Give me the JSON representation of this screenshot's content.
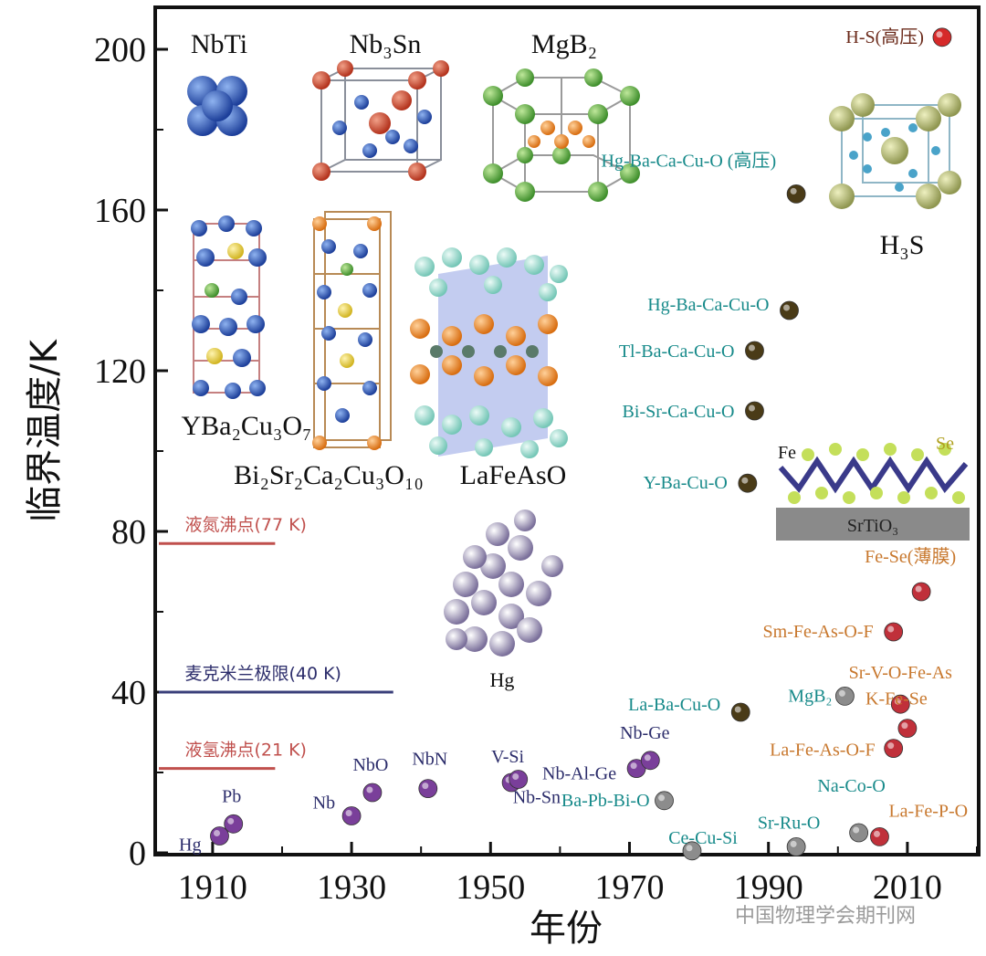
{
  "chart_data": {
    "type": "scatter",
    "xlabel": "年份",
    "ylabel": "临界温度/K",
    "xlim": [
      1902,
      2020
    ],
    "ylim": [
      0,
      210
    ],
    "x_ticks": [
      "1910",
      "1930",
      "1950",
      "1970",
      "1990",
      "2010"
    ],
    "y_ticks": [
      "0",
      "40",
      "80",
      "120",
      "160",
      "200"
    ],
    "reference_lines": [
      {
        "label": "液氮沸点(77 K)",
        "value": 77,
        "x_end": 1919,
        "color": "#c0504d"
      },
      {
        "label": "麦克米兰极限(40 K)",
        "value": 40,
        "x_end": 1936,
        "color": "#3a3f7a"
      },
      {
        "label": "液氢沸点(21 K)",
        "value": 21,
        "x_end": 1919,
        "color": "#c0504d"
      }
    ],
    "points": [
      {
        "label": "Hg",
        "x": 1911,
        "y": 4.2,
        "family": "metal"
      },
      {
        "label": "Pb",
        "x": 1913,
        "y": 7.2,
        "family": "metal"
      },
      {
        "label": "Nb",
        "x": 1930,
        "y": 9.2,
        "family": "metal"
      },
      {
        "label": "NbO",
        "x": 1933,
        "y": 15,
        "family": "metal"
      },
      {
        "label": "NbN",
        "x": 1941,
        "y": 16,
        "family": "metal"
      },
      {
        "label": "V-Si",
        "x": 1953,
        "y": 17.5,
        "family": "metal"
      },
      {
        "label": "Nb-Sn",
        "x": 1954,
        "y": 18.3,
        "family": "metal"
      },
      {
        "label": "Nb-Al-Ge",
        "x": 1971,
        "y": 21,
        "family": "metal"
      },
      {
        "label": "Nb-Ge",
        "x": 1973,
        "y": 23,
        "family": "metal"
      },
      {
        "label": "Ba-Pb-Bi-O",
        "x": 1975,
        "y": 13,
        "family": "oxide"
      },
      {
        "label": "Ce-Cu-Si",
        "x": 1979,
        "y": 0.5,
        "family": "oxide"
      },
      {
        "label": "La-Ba-Cu-O",
        "x": 1986,
        "y": 35,
        "family": "cuprate"
      },
      {
        "label": "Y-Ba-Cu-O",
        "x": 1987,
        "y": 92,
        "family": "cuprate"
      },
      {
        "label": "Bi-Sr-Ca-Cu-O",
        "x": 1988,
        "y": 110,
        "family": "cuprate"
      },
      {
        "label": "Tl-Ba-Ca-Cu-O",
        "x": 1988,
        "y": 125,
        "family": "cuprate"
      },
      {
        "label": "Hg-Ba-Ca-Cu-O",
        "x": 1993,
        "y": 135,
        "family": "cuprate"
      },
      {
        "label": "Hg-Ba-Ca-Cu-O (高压)",
        "x": 1994,
        "y": 164,
        "family": "cuprate"
      },
      {
        "label": "Sr-Ru-O",
        "x": 1994,
        "y": 1.5,
        "family": "oxide"
      },
      {
        "label": "MgB₂",
        "x": 2001,
        "y": 39,
        "family": "oxide"
      },
      {
        "label": "Na-Co-O",
        "x": 2003,
        "y": 5,
        "family": "oxide"
      },
      {
        "label": "La-Fe-P-O",
        "x": 2006,
        "y": 4,
        "family": "iron"
      },
      {
        "label": "La-Fe-As-O-F",
        "x": 2008,
        "y": 26,
        "family": "iron"
      },
      {
        "label": "Sm-Fe-As-O-F",
        "x": 2008,
        "y": 55,
        "family": "iron"
      },
      {
        "label": "Sr-V-O-Fe-As",
        "x": 2009,
        "y": 37,
        "family": "iron"
      },
      {
        "label": "K-Fe-Se",
        "x": 2010,
        "y": 31,
        "family": "iron"
      },
      {
        "label": "Fe-Se(薄膜)",
        "x": 2012,
        "y": 65,
        "family": "iron"
      },
      {
        "label": "H-S(高压)",
        "x": 2015,
        "y": 203,
        "family": "hydride"
      }
    ],
    "structure_labels": [
      "NbTi",
      "Nb₃Sn",
      "MgB₂",
      "YBa₂Cu₃O₇",
      "Bi₂Sr₂Ca₂Cu₃O₁₀",
      "LaFeAsO",
      "Hg",
      "H₃S",
      "Fe",
      "Se",
      "SrTiO₃"
    ]
  },
  "colors": {
    "metal_fill": "#7a3f9a",
    "oxide_fill": "#8c8c8c",
    "cuprate_fill": "#4a3b17",
    "iron_fill": "#c0303a",
    "hydride_fill": "#d62a2a",
    "metal_text": "#2c2d6b",
    "oxide_text": "#178a8a",
    "cuprate_text": "#178a8a",
    "iron_text": "#c8782e",
    "hydride_text": "#6b2a1a",
    "ref_red": "#c0504d",
    "ref_blue": "#3a3f7a"
  },
  "watermark": "中国物理学会期刊网"
}
